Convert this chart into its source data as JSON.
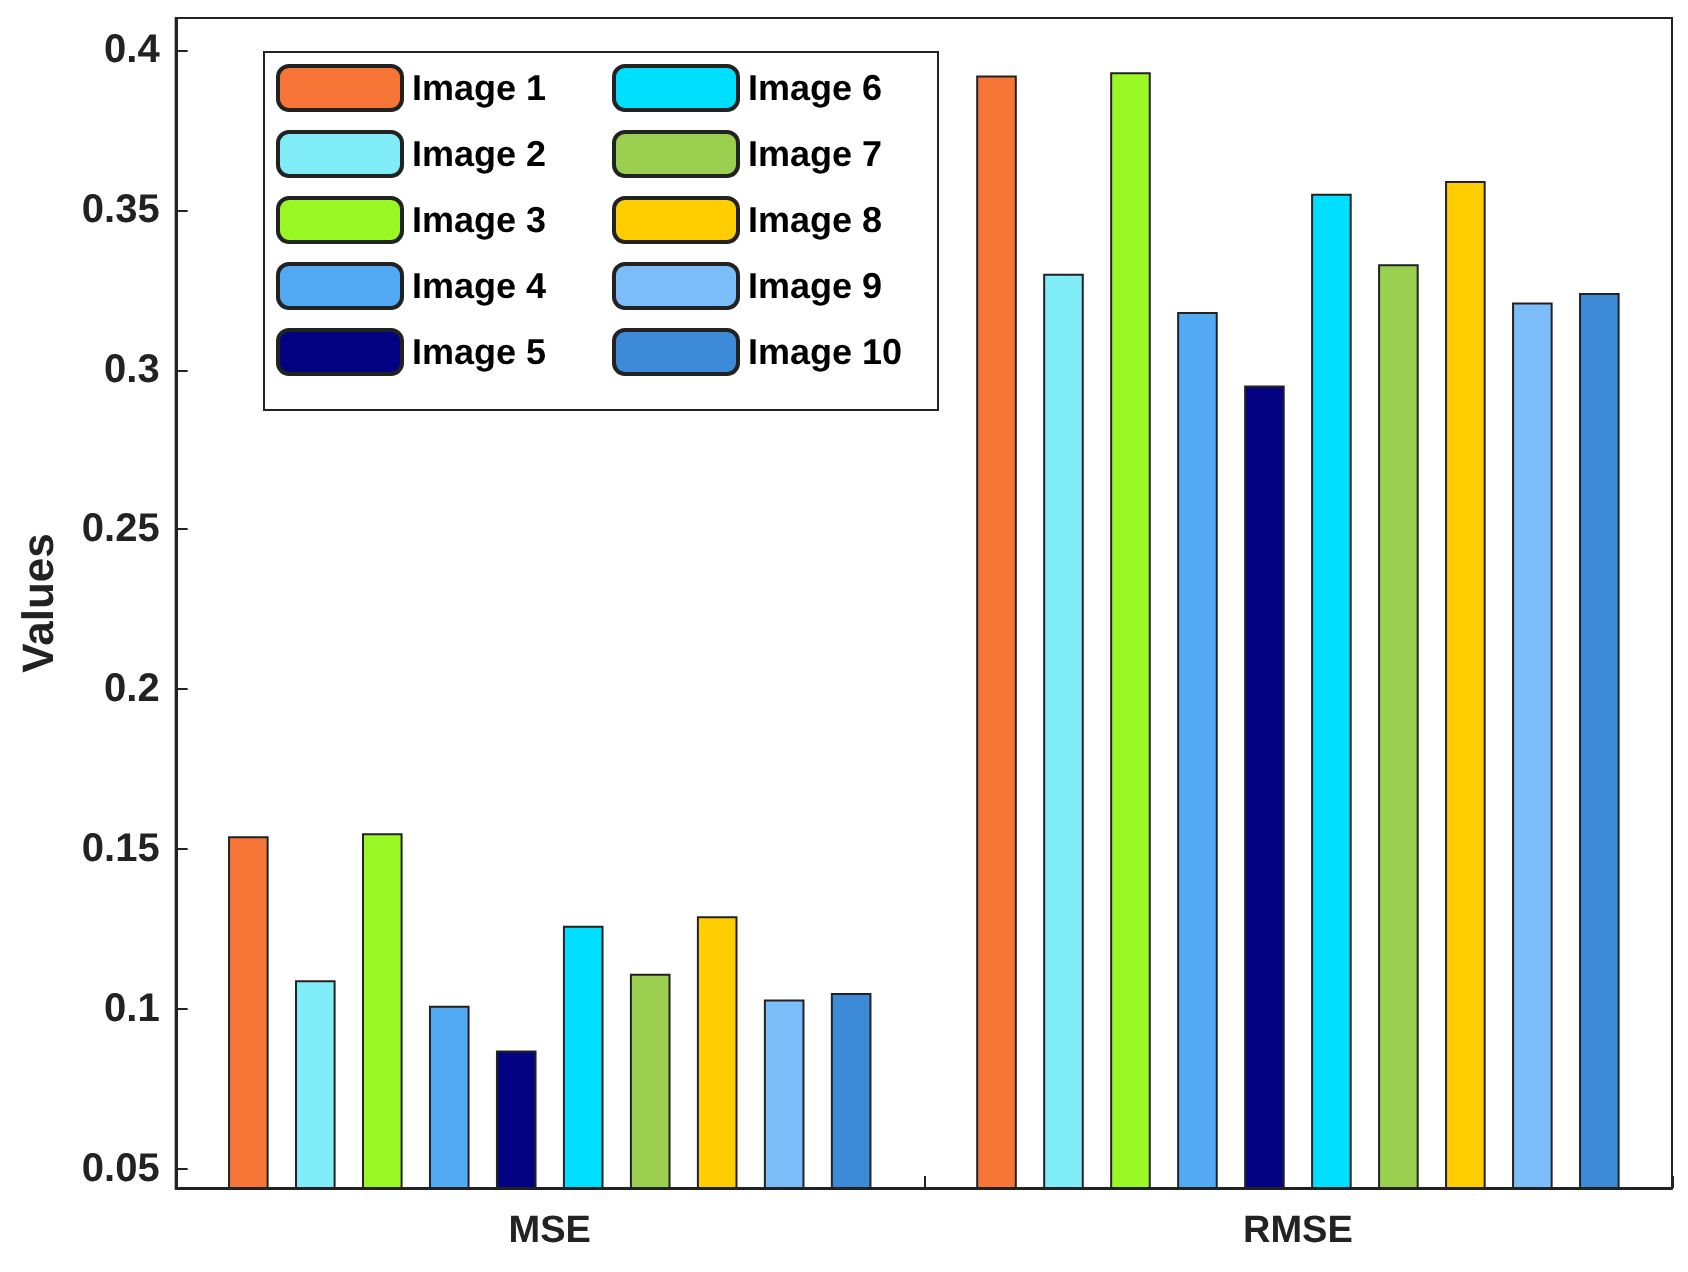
{
  "chart_data": {
    "type": "bar",
    "ylabel": "Values",
    "categories": [
      "MSE",
      "RMSE"
    ],
    "series": [
      {
        "name": "Image 1",
        "color": "#f87538",
        "values": [
          0.154,
          0.392
        ]
      },
      {
        "name": "Image 2",
        "color": "#80ecf8",
        "values": [
          0.109,
          0.33
        ]
      },
      {
        "name": "Image 3",
        "color": "#9af825",
        "values": [
          0.155,
          0.393
        ]
      },
      {
        "name": "Image 4",
        "color": "#52aaf5",
        "values": [
          0.101,
          0.318
        ]
      },
      {
        "name": "Image 5",
        "color": "#020282",
        "values": [
          0.087,
          0.295
        ]
      },
      {
        "name": "Image 6",
        "color": "#00dfff",
        "values": [
          0.126,
          0.355
        ]
      },
      {
        "name": "Image 7",
        "color": "#9bcf50",
        "values": [
          0.111,
          0.333
        ]
      },
      {
        "name": "Image 8",
        "color": "#ffcd00",
        "values": [
          0.129,
          0.359
        ]
      },
      {
        "name": "Image 9",
        "color": "#7bbdf9",
        "values": [
          0.103,
          0.321
        ]
      },
      {
        "name": "Image 10",
        "color": "#3d8bd8",
        "values": [
          0.105,
          0.324
        ]
      }
    ],
    "ylim": [
      0.044,
      0.41
    ],
    "yticks": [
      0.05,
      0.1,
      0.15,
      0.2,
      0.25,
      0.3,
      0.35,
      0.4
    ],
    "grid": false,
    "legend": "top left"
  }
}
